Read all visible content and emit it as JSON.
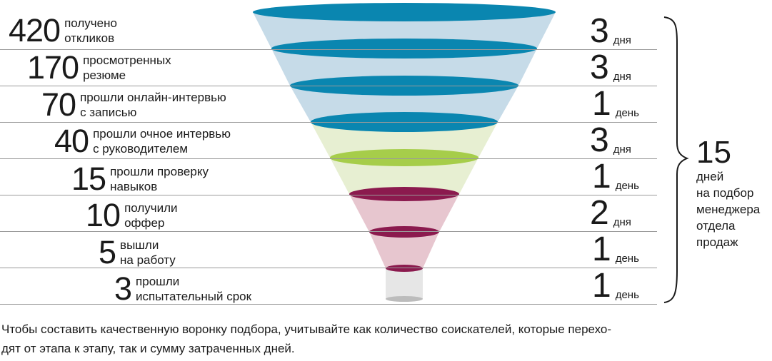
{
  "stages": [
    {
      "count": "420",
      "line1": "получено",
      "line2": "откликов",
      "days": "3",
      "unit": "дня"
    },
    {
      "count": "170",
      "line1": "просмотренных",
      "line2": "резюме",
      "days": "3",
      "unit": "дня"
    },
    {
      "count": "70",
      "line1": "прошли онлайн-интервью",
      "line2": "с записью",
      "days": "1",
      "unit": "день"
    },
    {
      "count": "40",
      "line1": "прошли очное интервью",
      "line2": "с руководителем",
      "days": "3",
      "unit": "дня"
    },
    {
      "count": "15",
      "line1": "прошли проверку",
      "line2": "навыков",
      "days": "1",
      "unit": "день"
    },
    {
      "count": "10",
      "line1": "получили",
      "line2": "оффер",
      "days": "2",
      "unit": "дня"
    },
    {
      "count": "5",
      "line1": "вышли",
      "line2": "на работу",
      "days": "1",
      "unit": "день"
    },
    {
      "count": "3",
      "line1": "прошли",
      "line2": "испытательный срок",
      "days": "1",
      "unit": "день"
    }
  ],
  "total": {
    "number": "15",
    "lines": [
      "дней",
      "на подбор",
      "менеджера",
      "отдела",
      "продаж"
    ]
  },
  "caption": {
    "line1": "Чтобы составить качественную воронку подбора, учитывайте как количество соискателей, которые перехо-",
    "line2": "дят от этапа к этапу, так и сумму затраченных дней."
  },
  "colors": {
    "blue_disc": "#0a86b0",
    "blue_cone": "#c6dbe8",
    "green_disc": "#a6cd4a",
    "green_cone": "#e7efd2",
    "purple_disc": "#8b1a4e",
    "pink_cone": "#e7c6cf",
    "grey_cone": "#e6e6e6",
    "grey_disc": "#bcbcbc",
    "line": "#9a9a9a",
    "text": "#1a1a1a"
  }
}
